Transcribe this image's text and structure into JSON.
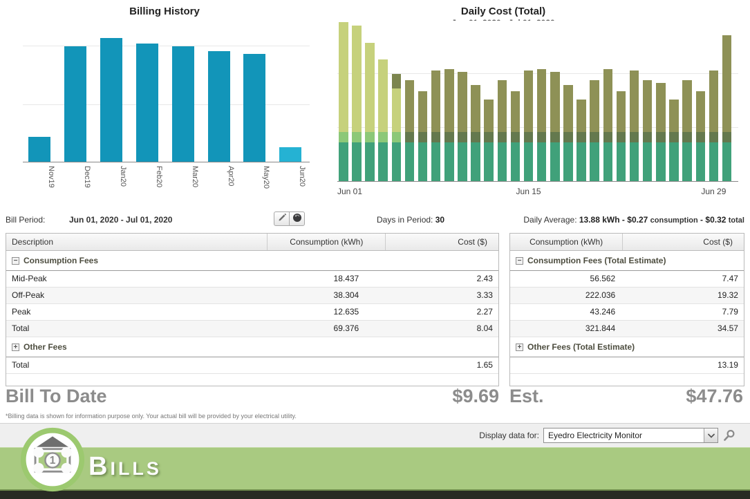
{
  "chart_data": [
    {
      "type": "bar",
      "title": "Billing History",
      "categories": [
        "Nov19",
        "Dec19",
        "Jan20",
        "Feb20",
        "Mar20",
        "Apr20",
        "May20",
        "Jun20"
      ],
      "values": [
        19,
        88,
        94,
        90,
        88,
        84,
        82,
        11
      ],
      "value_units": "percent_of_plot_height (no y-axis labels visible in chart)",
      "ylim": [
        0,
        100
      ],
      "xlabel": "",
      "ylabel": "",
      "gridlines_pct": [
        43,
        88
      ],
      "bar_color": "#1295b9",
      "current_period_bar_color": "#25b2d3",
      "legend": "none"
    },
    {
      "type": "bar",
      "stacked": true,
      "title": "Daily Cost (Total)",
      "subtitle": "Jun 01, 2020 - Jul 01, 2020",
      "days": 30,
      "x_ticks": [
        "Jun 01",
        "Jun 15",
        "Jun 29"
      ],
      "x_tick_bar_index": [
        0,
        14,
        28
      ],
      "totals_pct_of_plot": [
        99,
        97,
        86,
        76,
        67,
        63,
        56,
        69,
        70,
        68,
        60,
        51,
        63,
        56,
        69,
        70,
        68,
        60,
        51,
        63,
        70,
        56,
        69,
        63,
        61,
        51,
        63,
        56,
        69,
        91
      ],
      "base_segment_pct": 24,
      "band_segment_pct": 6.5,
      "light_scheme_bar_count": 5,
      "bar5_cap_pct": 9,
      "colors": {
        "base": "#40a17a",
        "band_dark": "#64794e",
        "top_dark": "#8e9156",
        "band_light": "#8cc878",
        "top_light": "#c6d17c",
        "cap": "#7c854e"
      },
      "gridlines_pct": [
        33,
        67
      ],
      "legend": "none"
    }
  ],
  "info_bar": {
    "bill_period_label": "Bill Period:",
    "bill_period_value": "Jun 01, 2020 - Jul 01, 2020",
    "days_label": "Days in Period:",
    "days_value": "30",
    "daily_avg_label": "Daily Average:",
    "daily_avg_kwh": "13.88 kWh",
    "sep1": "-",
    "daily_avg_consumption_value": "$0.27",
    "daily_avg_consumption_unit": "consumption",
    "sep2": "-",
    "daily_avg_total_value": "$0.32",
    "daily_avg_total_unit": "total"
  },
  "tables": {
    "left": {
      "columns": [
        {
          "label": "Description"
        },
        {
          "label": "Consumption (kWh)"
        },
        {
          "label": "Cost ($)"
        }
      ],
      "groups": [
        {
          "icon": "−",
          "icon_name": "collapse-icon",
          "label": "Consumption Fees",
          "rows": [
            [
              "Mid-Peak",
              "18.437",
              "2.43"
            ],
            [
              "Off-Peak",
              "38.304",
              "3.33"
            ],
            [
              "Peak",
              "12.635",
              "2.27"
            ],
            [
              "Total",
              "69.376",
              "8.04"
            ]
          ]
        },
        {
          "icon": "+",
          "icon_name": "expand-icon",
          "label": "Other Fees",
          "rows": [
            [
              "Total",
              "",
              "1.65"
            ]
          ]
        }
      ]
    },
    "right": {
      "columns": [
        {
          "label": "Consumption (kWh)"
        },
        {
          "label": "Cost ($)"
        }
      ],
      "groups": [
        {
          "icon": "−",
          "icon_name": "collapse-icon",
          "label": "Consumption Fees (Total Estimate)",
          "rows": [
            [
              "56.562",
              "7.47"
            ],
            [
              "222.036",
              "19.32"
            ],
            [
              "43.246",
              "7.79"
            ],
            [
              "321.844",
              "34.57"
            ]
          ]
        },
        {
          "icon": "+",
          "icon_name": "expand-icon",
          "label": "Other Fees (Total Estimate)",
          "rows": [
            [
              "",
              "13.19"
            ]
          ]
        }
      ]
    }
  },
  "totals": {
    "bill_to_date_label": "Bill To Date",
    "bill_to_date_value": "$9.69",
    "estimate_label": "Est.",
    "estimate_value": "$47.76",
    "disclaimer": "*Billing data is shown for information purpose only. Your actual bill will be provided by your electrical utility."
  },
  "footer": {
    "display_data_label": "Display data for:",
    "device_selector_value": "Eyedro Electricity Monitor",
    "brand": "Bills"
  }
}
